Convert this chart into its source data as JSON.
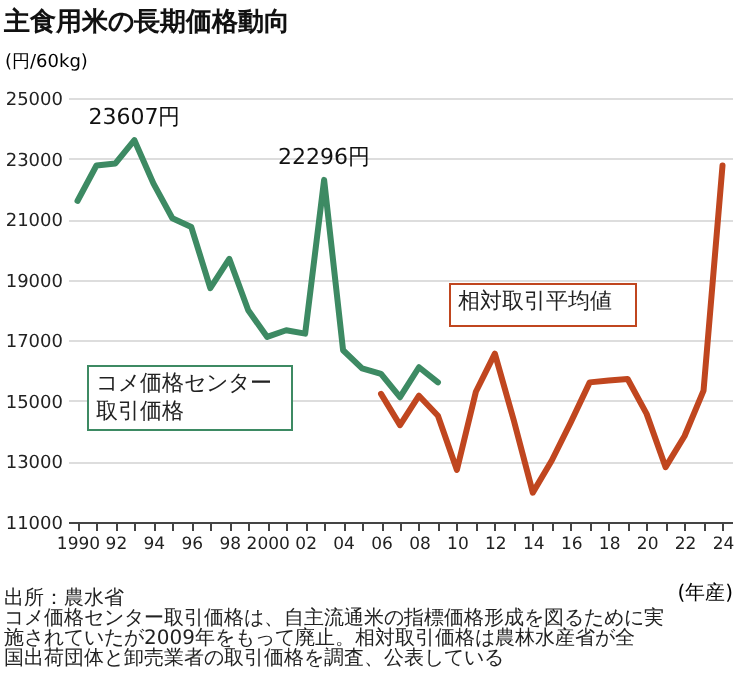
{
  "chart_data": {
    "type": "line",
    "title": "主食用米の長期価格動向",
    "xlabel": "(年産)",
    "ylabel": "(円/60kg)",
    "xlim": [
      1989.5,
      2024.5
    ],
    "ylim": [
      11000,
      25000
    ],
    "xticks": [
      1990,
      {
        "value": 1991,
        "label": null
      },
      {
        "value": 1992,
        "label": "92"
      },
      {
        "value": 1993,
        "label": null
      },
      {
        "value": 1994,
        "label": "94"
      },
      {
        "value": 1995,
        "label": null
      },
      {
        "value": 1996,
        "label": "96"
      },
      {
        "value": 1997,
        "label": null
      },
      {
        "value": 1998,
        "label": "98"
      },
      {
        "value": 1999,
        "label": null
      },
      2000,
      {
        "value": 2001,
        "label": null
      },
      {
        "value": 2002,
        "label": "02"
      },
      {
        "value": 2003,
        "label": null
      },
      {
        "value": 2004,
        "label": "04"
      },
      {
        "value": 2005,
        "label": null
      },
      {
        "value": 2006,
        "label": "06"
      },
      {
        "value": 2007,
        "label": null
      },
      {
        "value": 2008,
        "label": "08"
      },
      {
        "value": 2009,
        "label": null
      },
      {
        "value": 2010,
        "label": "10"
      },
      {
        "value": 2011,
        "label": null
      },
      {
        "value": 2012,
        "label": "12"
      },
      {
        "value": 2013,
        "label": null
      },
      {
        "value": 2014,
        "label": "14"
      },
      {
        "value": 2015,
        "label": null
      },
      {
        "value": 2016,
        "label": "16"
      },
      {
        "value": 2017,
        "label": null
      },
      {
        "value": 2018,
        "label": "18"
      },
      {
        "value": 2019,
        "label": null
      },
      {
        "value": 2020,
        "label": "20"
      },
      {
        "value": 2021,
        "label": null
      },
      {
        "value": 2022,
        "label": "22"
      },
      {
        "value": 2023,
        "label": null
      },
      {
        "value": 2024,
        "label": "24"
      }
    ],
    "yticks": [
      11000,
      13000,
      15000,
      17000,
      19000,
      21000,
      23000,
      25000
    ],
    "grid": "y",
    "legend": false,
    "marker": "none",
    "line_style": "solid",
    "series": [
      {
        "name": "コメ価格センター取引価格",
        "color": "#3d8a63",
        "x": [
          1990,
          1991,
          1992,
          1993,
          1994,
          1995,
          1996,
          1997,
          1998,
          1999,
          2000,
          2001,
          2002,
          2003,
          2004,
          2005,
          2006,
          2007,
          2008,
          2009
        ],
        "values": [
          21600,
          22770,
          22840,
          23607,
          22180,
          21030,
          20740,
          18720,
          19690,
          17990,
          17110,
          17330,
          17220,
          22296,
          16670,
          16070,
          15890,
          15120,
          16110,
          15610
        ]
      },
      {
        "name": "相対取引平均値",
        "color": "#c0461f",
        "x": [
          2006,
          2007,
          2008,
          2009,
          2010,
          2011,
          2012,
          2013,
          2014,
          2015,
          2016,
          2017,
          2018,
          2019,
          2020,
          2021,
          2022,
          2023,
          2024
        ],
        "values": [
          15230,
          14200,
          15170,
          14510,
          12720,
          15300,
          16560,
          14350,
          11970,
          13030,
          14290,
          15610,
          15670,
          15720,
          14570,
          12810,
          13840,
          15340,
          22770
        ]
      }
    ],
    "annotations": [
      {
        "text": "23607円",
        "x": 1993,
        "y": 23607
      },
      {
        "text": "22296円",
        "x": 2003,
        "y": 22296
      },
      "出所：農水省",
      "コメ価格センター取引価格は、自主流通米の指標価格形成を図るために実施されていたが2009年をもって廃止。相対取引価格は農林水産省が全国出荷団体と卸売業者の取引価格を調査、公表している"
    ]
  }
}
